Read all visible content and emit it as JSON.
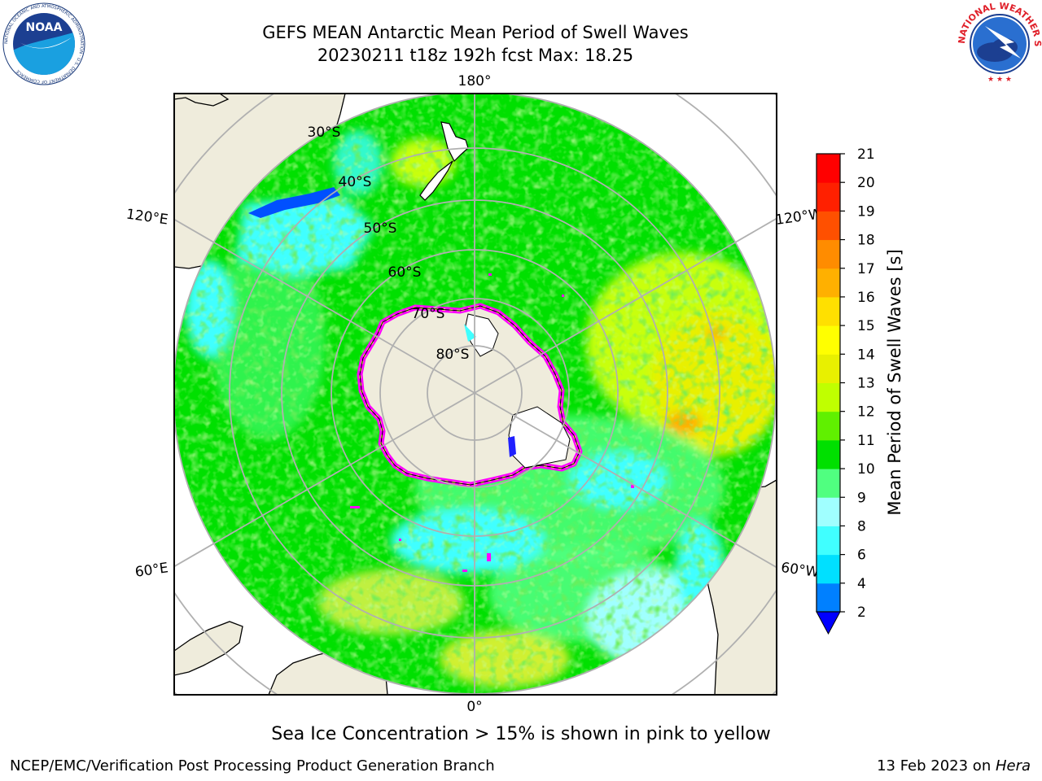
{
  "header": {
    "title_line1": "GEFS MEAN Antarctic Mean Period of Swell Waves",
    "title_line2": "20230211 t18z 192h fcst   Max: 18.25"
  },
  "logos": {
    "left": "NOAA",
    "left_ring_text": "NATIONAL OCEANIC AND ATMOSPHERIC ADMINISTRATION · U.S. DEPARTMENT OF COMMERCE",
    "right_ring_text": "NATIONAL WEATHER SERVICE"
  },
  "map": {
    "longitude_labels": {
      "top": "180°",
      "bottom": "0°",
      "upper_left": "120°E",
      "upper_right": "120°W",
      "lower_left": "60°E",
      "lower_right": "60°W"
    },
    "latitude_labels": [
      "30°S",
      "40°S",
      "50°S",
      "60°S",
      "70°S",
      "80°S"
    ],
    "land_color": "#efecdc",
    "ice_edge_colors": [
      "#ff00ff",
      "#ffff00"
    ]
  },
  "colorbar": {
    "label": "Mean Period of Swell Waves [s]",
    "ticks": [
      "2",
      "4",
      "6",
      "8",
      "9",
      "10",
      "11",
      "12",
      "13",
      "14",
      "15",
      "16",
      "17",
      "18",
      "19",
      "20",
      "21"
    ],
    "colors": [
      "#0080ff",
      "#00e0ff",
      "#40ffff",
      "#a0ffff",
      "#50ff80",
      "#00e000",
      "#60f000",
      "#c0ff00",
      "#e8f000",
      "#ffff00",
      "#ffe000",
      "#ffb000",
      "#ff8c00",
      "#ff5000",
      "#ff2000",
      "#ff0000"
    ],
    "extend_low_color": "#0000ff"
  },
  "note": "Sea Ice Concentration > 15% is shown in pink to yellow",
  "footer": {
    "left": "NCEP/EMC/Verification Post Processing Product Generation Branch",
    "date": "13 Feb 2023 on ",
    "machine": "Hera"
  }
}
